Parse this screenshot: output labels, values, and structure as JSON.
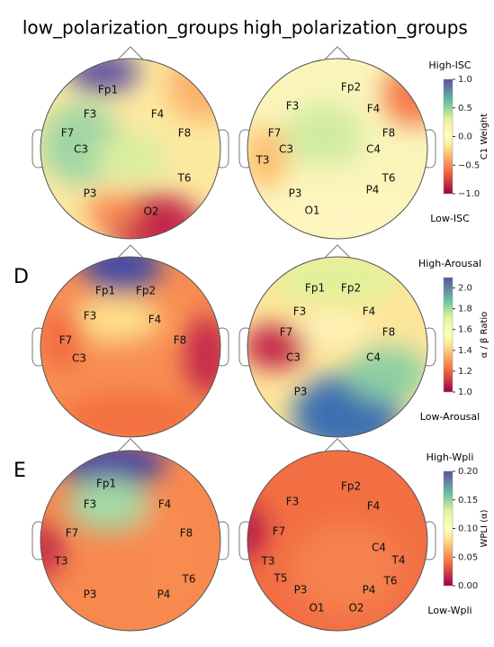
{
  "titles": [
    "low_polarization_groups",
    "high_polarization_groups"
  ],
  "rows": [
    {
      "letter": null,
      "colorbar": {
        "label": "C1 Weight",
        "high": "High-ISC",
        "low": "Low-ISC",
        "lim": [
          -1,
          1
        ],
        "ticks": [
          {
            "value": 1,
            "label": "1.0"
          },
          {
            "value": 0.5,
            "label": "0.5"
          },
          {
            "value": 0,
            "label": "0.0"
          },
          {
            "value": -0.5,
            "label": "−0.5"
          },
          {
            "value": -1,
            "label": "−1.0"
          }
        ]
      },
      "panels": [
        {
          "electrodes": [
            "Fp1",
            "F3",
            "F4",
            "F7",
            "F8",
            "C3",
            "T6",
            "P3",
            "O2"
          ]
        },
        {
          "electrodes": [
            "Fp2",
            "F3",
            "F4",
            "F7",
            "F8",
            "C3",
            "C4",
            "T3",
            "T6",
            "P3",
            "P4",
            "O1"
          ]
        }
      ]
    },
    {
      "letter": "D",
      "colorbar": {
        "label": "α / β Ratio",
        "high": "High-Arousal",
        "low": "Low-Arousal",
        "lim": [
          1,
          2.1
        ],
        "ticks": [
          {
            "value": 2,
            "label": "2.0"
          },
          1.8,
          1.6,
          1.4,
          1.2,
          {
            "value": 1,
            "label": "1.0"
          }
        ]
      },
      "panels": [
        {
          "electrodes": [
            "Fp1",
            "Fp2",
            "F3",
            "F4",
            "F7",
            "F8",
            "C3"
          ]
        },
        {
          "electrodes": [
            "Fp1",
            "Fp2",
            "F3",
            "F4",
            "F7",
            "F8",
            "C3",
            "C4",
            "P3"
          ]
        }
      ]
    },
    {
      "letter": "E",
      "colorbar": {
        "label": "WPLI (α)",
        "high": "High-Wpli",
        "low": "Low-Wpli",
        "lim": [
          0,
          0.2
        ],
        "ticks": [
          {
            "value": 0.2,
            "label": "0.20"
          },
          0.15,
          {
            "value": 0.1,
            "label": "0.10"
          },
          0.05,
          {
            "value": 0,
            "label": "0.00"
          }
        ]
      },
      "panels": [
        {
          "electrodes": [
            "Fp1",
            "F3",
            "F4",
            "F7",
            "F8",
            "T3",
            "T6",
            "P3",
            "P4"
          ]
        },
        {
          "electrodes": [
            "Fp2",
            "F3",
            "F4",
            "F7",
            "C4",
            "T4",
            "T3",
            "T5",
            "T6",
            "P3",
            "P4",
            "O1",
            "O2"
          ]
        }
      ]
    }
  ]
}
